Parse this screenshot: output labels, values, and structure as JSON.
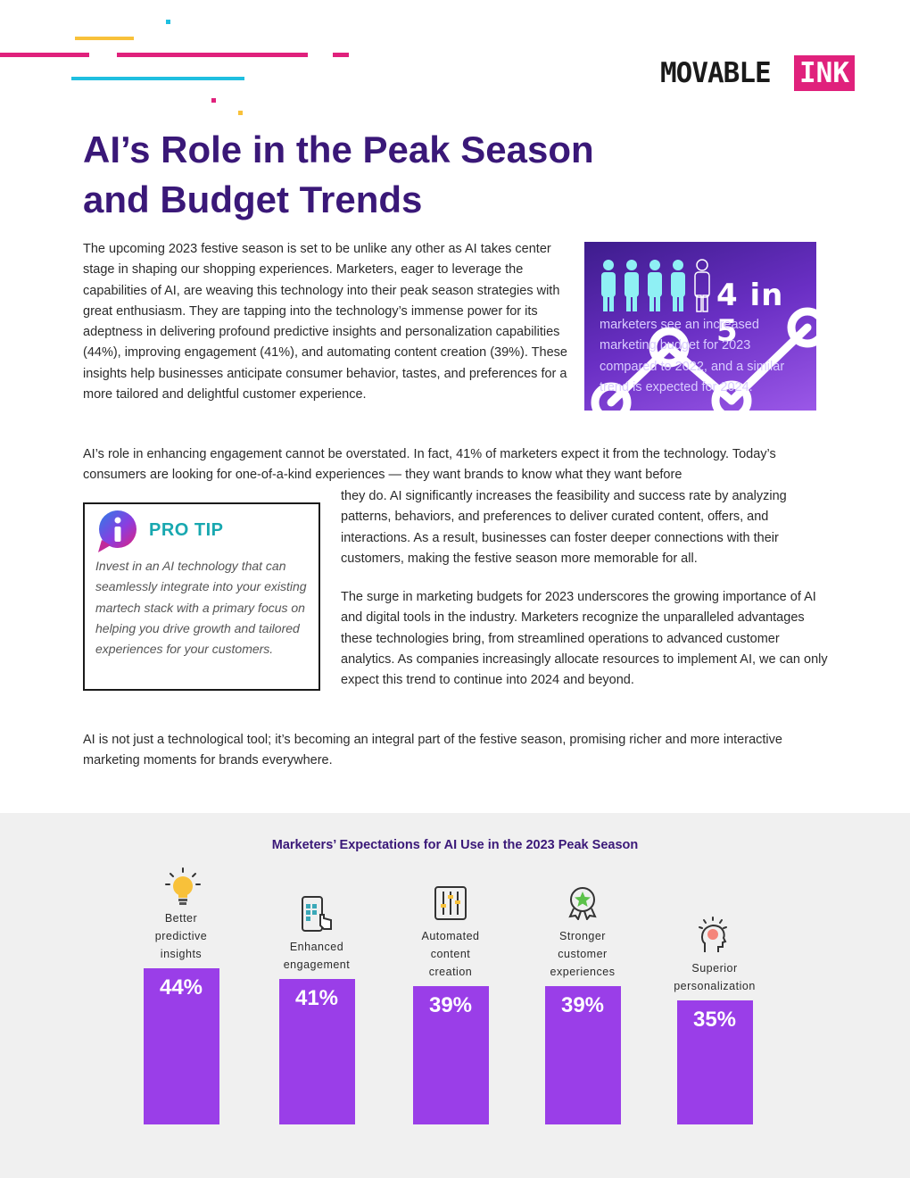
{
  "brand": {
    "logo_word": "MOVABLE",
    "logo_accent": "INK",
    "accent_color": "#e0217c"
  },
  "title": "AI’s Role in the Peak Season and Budget Trends",
  "intro": "The upcoming 2023 festive season is set to be unlike any other as AI takes center stage in shaping our shopping experiences. Marketers, eager to leverage the capabilities of AI, are weaving this technology into their peak season strategies with great enthusiasm. They are tapping into the technology’s immense power for its adeptness in delivering profound predictive insights and personalization capabilities (44%), improving engagement (41%), and automating content creation (39%). These insights help businesses anticipate consumer behavior, tastes, and preferences for a more tailored and delightful customer experience.",
  "stat": {
    "number": "4 in 5",
    "text": "marketers see an increased marketing budget for 2023 compared to 2022, and a similar trend is expected for 2024.",
    "icons": "person-icons"
  },
  "engagement_para_top": "AI’s role in enhancing engagement cannot be overstated. In fact, 41% of marketers expect it from the technology. Today’s consumers are looking for one-of-a-kind experiences — they want brands to know what they want before",
  "engagement_para_rest": "they do. AI significantly increases the feasibility and success rate by analyzing patterns, behaviors, and preferences to deliver curated content, offers, and interactions. As a result, businesses can foster deeper connections with their customers, making the festive season more memorable for all.",
  "pro_tip": {
    "title": "PRO TIP",
    "text": "Invest in an AI technology that can seamlessly integrate into your existing martech stack with a primary focus on helping you drive growth and tailored experiences for your customers."
  },
  "budget_para": "The surge in marketing budgets for 2023 underscores the growing importance of AI and digital tools in the industry. Marketers recognize the unparalleled advantages these technologies bring, from streamlined operations to advanced customer analytics. As companies increasingly allocate resources to implement AI, we can only expect this trend to continue into 2024 and beyond.",
  "closing_para": "AI is not just a technological tool; it’s becoming an integral part of the festive season, promising richer and more interactive marketing moments for brands everywhere.",
  "chart_data": {
    "type": "bar",
    "title": "Marketers’ Expectations for AI Use in the 2023 Peak Season",
    "categories": [
      "Better predictive insights",
      "Enhanced engagement",
      "Automated content creation",
      "Stronger customer experiences",
      "Superior personalization"
    ],
    "values": [
      44,
      41,
      39,
      39,
      35
    ],
    "value_labels": [
      "44%",
      "41%",
      "39%",
      "39%",
      "35%"
    ],
    "icons": [
      "lightbulb-icon",
      "mobile-touch-icon",
      "sliders-icon",
      "award-badge-icon",
      "head-idea-icon"
    ],
    "bar_color": "#9a3ee8",
    "ylim": [
      0,
      44
    ]
  }
}
